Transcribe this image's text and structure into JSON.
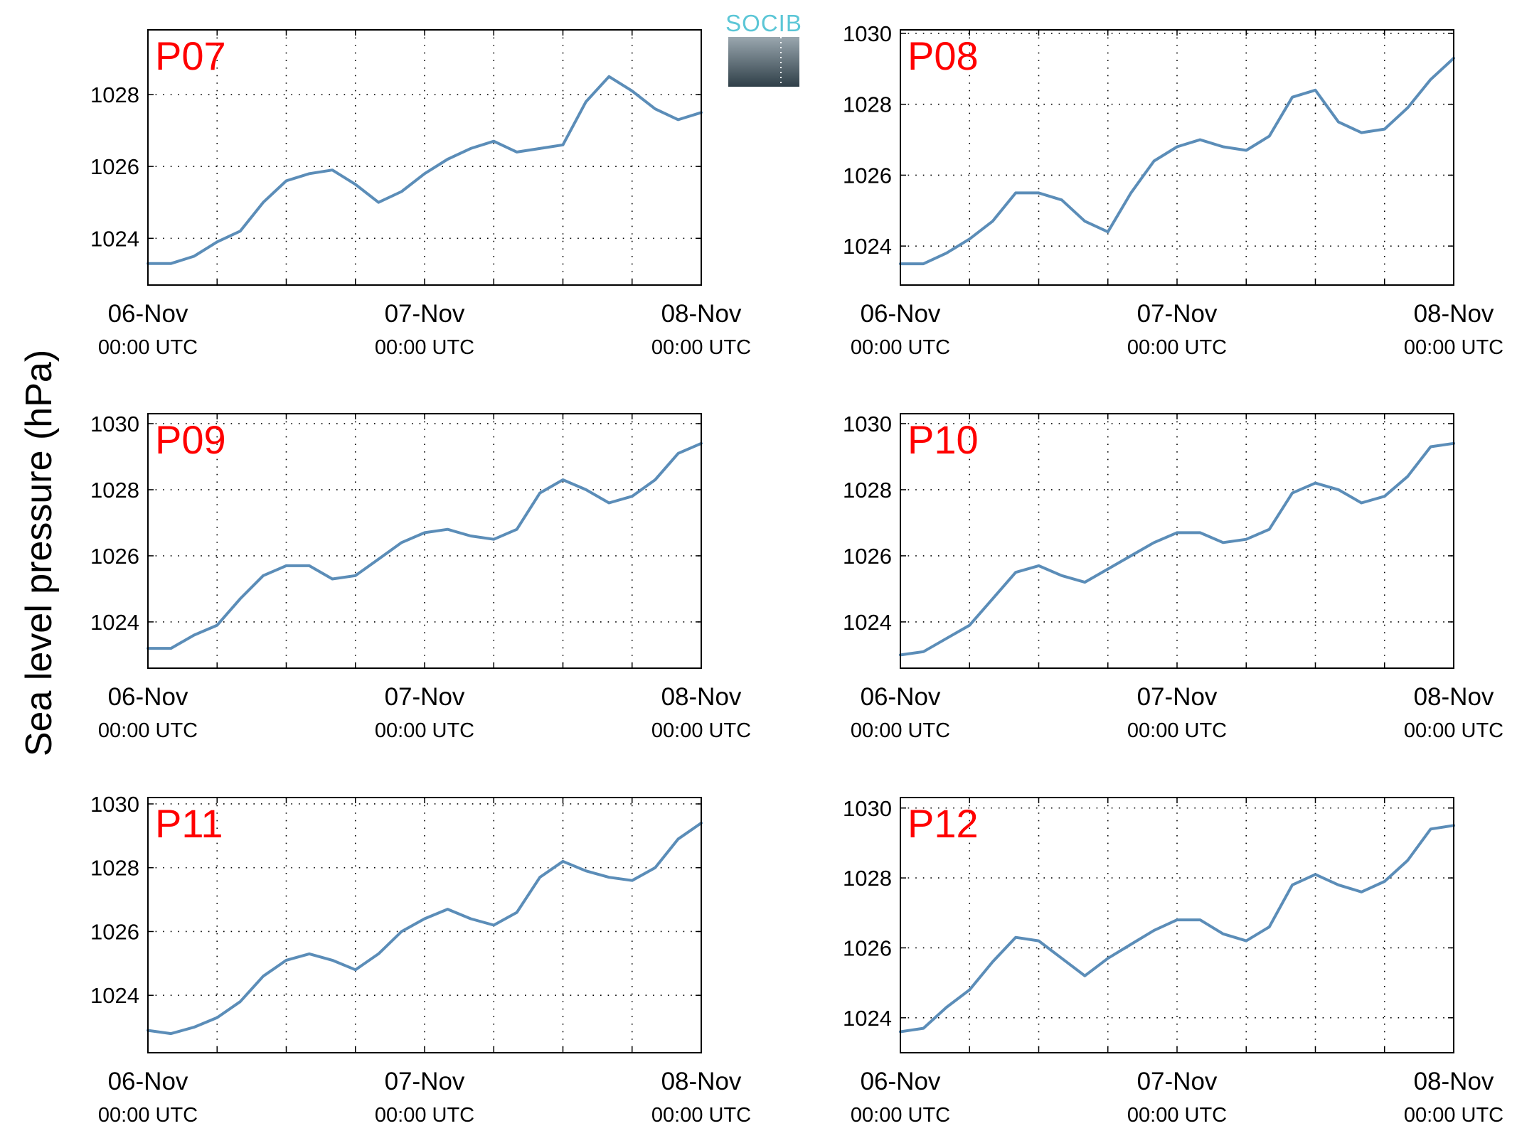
{
  "figure": {
    "ylabel": "Sea level pressure (hPa)",
    "logo_text": "SOCIB"
  },
  "colors": {
    "line": "#5b8db8",
    "panel_label": "#ff0000",
    "logo_text": "#5bc6d6",
    "logo_top": "#9aa7af",
    "logo_bottom": "#2f3f48"
  },
  "chart_data": [
    {
      "type": "line",
      "panel_label": "P07",
      "xlabel": "",
      "ylabel": "Sea level pressure (hPa)",
      "xlim": [
        "06-Nov 00:00 UTC",
        "08-Nov 00:00 UTC"
      ],
      "ylim": [
        1022.7,
        1029.8
      ],
      "grid": true,
      "x_ticks": [
        {
          "main": "06-Nov",
          "sub": "00:00 UTC"
        },
        {
          "main": "07-Nov",
          "sub": "00:00 UTC"
        },
        {
          "main": "08-Nov",
          "sub": "00:00 UTC"
        }
      ],
      "y_ticks": [
        1024,
        1026,
        1028
      ],
      "series": [
        {
          "x_hours": [
            0,
            2,
            4,
            6,
            8,
            10,
            12,
            14,
            16,
            18,
            20,
            22,
            24,
            26,
            28,
            30,
            32,
            34,
            36,
            38,
            40,
            42,
            44,
            46,
            48
          ],
          "values": [
            1023.3,
            1023.3,
            1023.5,
            1023.9,
            1024.2,
            1025.0,
            1025.6,
            1025.8,
            1025.9,
            1025.5,
            1025.0,
            1025.3,
            1025.8,
            1026.2,
            1026.5,
            1026.7,
            1026.4,
            1026.5,
            1026.6,
            1027.8,
            1028.5,
            1028.1,
            1027.6,
            1027.3,
            1027.5
          ]
        }
      ]
    },
    {
      "type": "line",
      "panel_label": "P08",
      "xlabel": "",
      "ylabel": "",
      "xlim": [
        "06-Nov 00:00 UTC",
        "08-Nov 00:00 UTC"
      ],
      "ylim": [
        1022.9,
        1030.1
      ],
      "grid": true,
      "x_ticks": [
        {
          "main": "06-Nov",
          "sub": "00:00 UTC"
        },
        {
          "main": "07-Nov",
          "sub": "00:00 UTC"
        },
        {
          "main": "08-Nov",
          "sub": "00:00 UTC"
        }
      ],
      "y_ticks": [
        1024,
        1026,
        1028,
        1030
      ],
      "series": [
        {
          "x_hours": [
            0,
            2,
            4,
            6,
            8,
            10,
            12,
            14,
            16,
            18,
            20,
            22,
            24,
            26,
            28,
            30,
            32,
            34,
            36,
            38,
            40,
            42,
            44,
            46,
            48
          ],
          "values": [
            1023.5,
            1023.5,
            1023.8,
            1024.2,
            1024.7,
            1025.5,
            1025.5,
            1025.3,
            1024.7,
            1024.4,
            1025.5,
            1026.4,
            1026.8,
            1027.0,
            1026.8,
            1026.7,
            1027.1,
            1028.2,
            1028.4,
            1027.5,
            1027.2,
            1027.3,
            1027.9,
            1028.7,
            1029.3
          ]
        }
      ]
    },
    {
      "type": "line",
      "panel_label": "P09",
      "xlabel": "",
      "ylabel": "",
      "xlim": [
        "06-Nov 00:00 UTC",
        "08-Nov 00:00 UTC"
      ],
      "ylim": [
        1022.6,
        1030.3
      ],
      "grid": true,
      "x_ticks": [
        {
          "main": "06-Nov",
          "sub": "00:00 UTC"
        },
        {
          "main": "07-Nov",
          "sub": "00:00 UTC"
        },
        {
          "main": "08-Nov",
          "sub": "00:00 UTC"
        }
      ],
      "y_ticks": [
        1024,
        1026,
        1028,
        1030
      ],
      "series": [
        {
          "x_hours": [
            0,
            2,
            4,
            6,
            8,
            10,
            12,
            14,
            16,
            18,
            20,
            22,
            24,
            26,
            28,
            30,
            32,
            34,
            36,
            38,
            40,
            42,
            44,
            46,
            48
          ],
          "values": [
            1023.2,
            1023.2,
            1023.6,
            1023.9,
            1024.7,
            1025.4,
            1025.7,
            1025.7,
            1025.3,
            1025.4,
            1025.9,
            1026.4,
            1026.7,
            1026.8,
            1026.6,
            1026.5,
            1026.8,
            1027.9,
            1028.3,
            1028.0,
            1027.6,
            1027.8,
            1028.3,
            1029.1,
            1029.4
          ]
        }
      ]
    },
    {
      "type": "line",
      "panel_label": "P10",
      "xlabel": "",
      "ylabel": "",
      "xlim": [
        "06-Nov 00:00 UTC",
        "08-Nov 00:00 UTC"
      ],
      "ylim": [
        1022.6,
        1030.3
      ],
      "grid": true,
      "x_ticks": [
        {
          "main": "06-Nov",
          "sub": "00:00 UTC"
        },
        {
          "main": "07-Nov",
          "sub": "00:00 UTC"
        },
        {
          "main": "08-Nov",
          "sub": "00:00 UTC"
        }
      ],
      "y_ticks": [
        1024,
        1026,
        1028,
        1030
      ],
      "series": [
        {
          "x_hours": [
            0,
            2,
            4,
            6,
            8,
            10,
            12,
            14,
            16,
            18,
            20,
            22,
            24,
            26,
            28,
            30,
            32,
            34,
            36,
            38,
            40,
            42,
            44,
            46,
            48
          ],
          "values": [
            1023.0,
            1023.1,
            1023.5,
            1023.9,
            1024.7,
            1025.5,
            1025.7,
            1025.4,
            1025.2,
            1025.6,
            1026.0,
            1026.4,
            1026.7,
            1026.7,
            1026.4,
            1026.5,
            1026.8,
            1027.9,
            1028.2,
            1028.0,
            1027.6,
            1027.8,
            1028.4,
            1029.3,
            1029.4
          ]
        }
      ]
    },
    {
      "type": "line",
      "panel_label": "P11",
      "xlabel": "",
      "ylabel": "",
      "xlim": [
        "06-Nov 00:00 UTC",
        "08-Nov 00:00 UTC"
      ],
      "ylim": [
        1022.2,
        1030.2
      ],
      "grid": true,
      "x_ticks": [
        {
          "main": "06-Nov",
          "sub": "00:00 UTC"
        },
        {
          "main": "07-Nov",
          "sub": "00:00 UTC"
        },
        {
          "main": "08-Nov",
          "sub": "00:00 UTC"
        }
      ],
      "y_ticks": [
        1024,
        1026,
        1028,
        1030
      ],
      "series": [
        {
          "x_hours": [
            0,
            2,
            4,
            6,
            8,
            10,
            12,
            14,
            16,
            18,
            20,
            22,
            24,
            26,
            28,
            30,
            32,
            34,
            36,
            38,
            40,
            42,
            44,
            46,
            48
          ],
          "values": [
            1022.9,
            1022.8,
            1023.0,
            1023.3,
            1023.8,
            1024.6,
            1025.1,
            1025.3,
            1025.1,
            1024.8,
            1025.3,
            1026.0,
            1026.4,
            1026.7,
            1026.4,
            1026.2,
            1026.6,
            1027.7,
            1028.2,
            1027.9,
            1027.7,
            1027.6,
            1028.0,
            1028.9,
            1029.4
          ]
        }
      ]
    },
    {
      "type": "line",
      "panel_label": "P12",
      "xlabel": "",
      "ylabel": "",
      "xlim": [
        "06-Nov 00:00 UTC",
        "08-Nov 00:00 UTC"
      ],
      "ylim": [
        1023.0,
        1030.3
      ],
      "grid": true,
      "x_ticks": [
        {
          "main": "06-Nov",
          "sub": "00:00 UTC"
        },
        {
          "main": "07-Nov",
          "sub": "00:00 UTC"
        },
        {
          "main": "08-Nov",
          "sub": "00:00 UTC"
        }
      ],
      "y_ticks": [
        1024,
        1026,
        1028,
        1030
      ],
      "series": [
        {
          "x_hours": [
            0,
            2,
            4,
            6,
            8,
            10,
            12,
            14,
            16,
            18,
            20,
            22,
            24,
            26,
            28,
            30,
            32,
            34,
            36,
            38,
            40,
            42,
            44,
            46,
            48
          ],
          "values": [
            1023.6,
            1023.7,
            1024.3,
            1024.8,
            1025.6,
            1026.3,
            1026.2,
            1025.7,
            1025.2,
            1025.7,
            1026.1,
            1026.5,
            1026.8,
            1026.8,
            1026.4,
            1026.2,
            1026.6,
            1027.8,
            1028.1,
            1027.8,
            1027.6,
            1027.9,
            1028.5,
            1029.4,
            1029.5
          ]
        }
      ]
    }
  ]
}
